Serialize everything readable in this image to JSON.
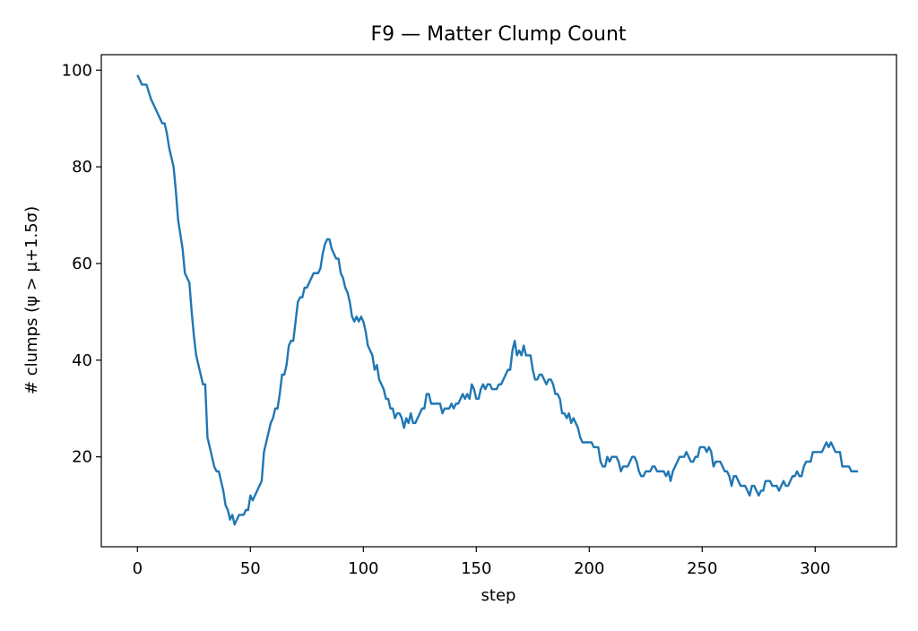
{
  "chart_data": {
    "type": "line",
    "title": "F9 — Matter Clump Count",
    "xlabel": "step",
    "ylabel": "# clumps (ψ > μ+1.5σ)",
    "xlim": [
      -16,
      336
    ],
    "ylim": [
      1.4,
      103.2
    ],
    "xticks": [
      0,
      50,
      100,
      150,
      200,
      250,
      300
    ],
    "yticks": [
      20,
      40,
      60,
      80,
      100
    ],
    "grid": false,
    "color": "#1f77b4",
    "series": [
      {
        "points": [
          [
            0,
            99
          ],
          [
            2,
            97
          ],
          [
            4,
            97
          ],
          [
            6,
            94
          ],
          [
            8,
            92
          ],
          [
            10,
            90
          ],
          [
            11,
            89
          ],
          [
            12,
            89
          ],
          [
            13,
            87
          ],
          [
            14,
            84
          ],
          [
            16,
            80
          ],
          [
            17,
            75
          ],
          [
            18,
            69
          ],
          [
            20,
            63
          ],
          [
            21,
            58
          ],
          [
            22,
            57
          ],
          [
            23,
            56
          ],
          [
            24,
            50
          ],
          [
            25,
            45
          ],
          [
            26,
            41
          ],
          [
            28,
            37
          ],
          [
            29,
            35
          ],
          [
            30,
            35
          ],
          [
            31,
            24
          ],
          [
            32,
            22
          ],
          [
            33,
            20
          ],
          [
            34,
            18
          ],
          [
            35,
            17
          ],
          [
            36,
            17
          ],
          [
            37,
            15
          ],
          [
            38,
            13
          ],
          [
            39,
            10
          ],
          [
            40,
            9
          ],
          [
            41,
            7
          ],
          [
            42,
            8
          ],
          [
            43,
            6
          ],
          [
            44,
            7
          ],
          [
            45,
            8
          ],
          [
            46,
            8
          ],
          [
            47,
            8
          ],
          [
            48,
            9
          ],
          [
            49,
            9
          ],
          [
            50,
            12
          ],
          [
            51,
            11
          ],
          [
            52,
            12
          ],
          [
            54,
            14
          ],
          [
            55,
            15
          ],
          [
            56,
            21
          ],
          [
            57,
            23
          ],
          [
            58,
            25
          ],
          [
            59,
            27
          ],
          [
            60,
            28
          ],
          [
            61,
            30
          ],
          [
            62,
            30
          ],
          [
            63,
            33
          ],
          [
            64,
            37
          ],
          [
            65,
            37
          ],
          [
            66,
            39
          ],
          [
            67,
            43
          ],
          [
            68,
            44
          ],
          [
            69,
            44
          ],
          [
            70,
            48
          ],
          [
            71,
            52
          ],
          [
            72,
            53
          ],
          [
            73,
            53
          ],
          [
            74,
            55
          ],
          [
            75,
            55
          ],
          [
            76,
            56
          ],
          [
            77,
            57
          ],
          [
            78,
            58
          ],
          [
            79,
            58
          ],
          [
            80,
            58
          ],
          [
            81,
            59
          ],
          [
            82,
            62
          ],
          [
            83,
            64
          ],
          [
            84,
            65
          ],
          [
            85,
            65
          ],
          [
            86,
            63
          ],
          [
            87,
            62
          ],
          [
            88,
            61
          ],
          [
            89,
            61
          ],
          [
            90,
            58
          ],
          [
            91,
            57
          ],
          [
            92,
            55
          ],
          [
            93,
            54
          ],
          [
            94,
            52
          ],
          [
            95,
            49
          ],
          [
            96,
            48
          ],
          [
            97,
            49
          ],
          [
            98,
            48
          ],
          [
            99,
            49
          ],
          [
            100,
            48
          ],
          [
            101,
            46
          ],
          [
            102,
            43
          ],
          [
            103,
            42
          ],
          [
            104,
            41
          ],
          [
            105,
            38
          ],
          [
            106,
            39
          ],
          [
            107,
            36
          ],
          [
            108,
            35
          ],
          [
            109,
            34
          ],
          [
            110,
            32
          ],
          [
            111,
            32
          ],
          [
            112,
            30
          ],
          [
            113,
            30
          ],
          [
            114,
            28
          ],
          [
            115,
            29
          ],
          [
            116,
            29
          ],
          [
            117,
            28
          ],
          [
            118,
            26
          ],
          [
            119,
            28
          ],
          [
            120,
            27
          ],
          [
            121,
            29
          ],
          [
            122,
            27
          ],
          [
            123,
            27
          ],
          [
            124,
            28
          ],
          [
            125,
            29
          ],
          [
            126,
            30
          ],
          [
            127,
            30
          ],
          [
            128,
            33
          ],
          [
            129,
            33
          ],
          [
            130,
            31
          ],
          [
            131,
            31
          ],
          [
            132,
            31
          ],
          [
            133,
            31
          ],
          [
            134,
            31
          ],
          [
            135,
            29
          ],
          [
            136,
            30
          ],
          [
            137,
            30
          ],
          [
            138,
            30
          ],
          [
            139,
            31
          ],
          [
            140,
            30
          ],
          [
            141,
            31
          ],
          [
            142,
            31
          ],
          [
            143,
            32
          ],
          [
            144,
            33
          ],
          [
            145,
            32
          ],
          [
            146,
            33
          ],
          [
            147,
            32
          ],
          [
            148,
            35
          ],
          [
            149,
            34
          ],
          [
            150,
            32
          ],
          [
            151,
            32
          ],
          [
            152,
            34
          ],
          [
            153,
            35
          ],
          [
            154,
            34
          ],
          [
            155,
            35
          ],
          [
            156,
            35
          ],
          [
            157,
            34
          ],
          [
            158,
            34
          ],
          [
            159,
            34
          ],
          [
            160,
            35
          ],
          [
            161,
            35
          ],
          [
            162,
            36
          ],
          [
            163,
            37
          ],
          [
            164,
            38
          ],
          [
            165,
            38
          ],
          [
            166,
            42
          ],
          [
            167,
            44
          ],
          [
            168,
            41
          ],
          [
            169,
            42
          ],
          [
            170,
            41
          ],
          [
            171,
            43
          ],
          [
            172,
            41
          ],
          [
            173,
            41
          ],
          [
            174,
            41
          ],
          [
            175,
            38
          ],
          [
            176,
            36
          ],
          [
            177,
            36
          ],
          [
            178,
            37
          ],
          [
            179,
            37
          ],
          [
            180,
            36
          ],
          [
            181,
            35
          ],
          [
            182,
            36
          ],
          [
            183,
            36
          ],
          [
            184,
            35
          ],
          [
            185,
            33
          ],
          [
            186,
            33
          ],
          [
            187,
            32
          ],
          [
            188,
            29
          ],
          [
            189,
            29
          ],
          [
            190,
            28
          ],
          [
            191,
            29
          ],
          [
            192,
            27
          ],
          [
            193,
            28
          ],
          [
            194,
            27
          ],
          [
            195,
            26
          ],
          [
            196,
            24
          ],
          [
            197,
            23
          ],
          [
            198,
            23
          ],
          [
            199,
            23
          ],
          [
            200,
            23
          ],
          [
            201,
            23
          ],
          [
            202,
            22
          ],
          [
            203,
            22
          ],
          [
            204,
            22
          ],
          [
            205,
            19
          ],
          [
            206,
            18
          ],
          [
            207,
            18
          ],
          [
            208,
            20
          ],
          [
            209,
            19
          ],
          [
            210,
            20
          ],
          [
            211,
            20
          ],
          [
            212,
            20
          ],
          [
            213,
            19
          ],
          [
            214,
            17
          ],
          [
            215,
            18
          ],
          [
            216,
            18
          ],
          [
            217,
            18
          ],
          [
            218,
            19
          ],
          [
            219,
            20
          ],
          [
            220,
            20
          ],
          [
            221,
            19
          ],
          [
            222,
            17
          ],
          [
            223,
            16
          ],
          [
            224,
            16
          ],
          [
            225,
            17
          ],
          [
            226,
            17
          ],
          [
            227,
            17
          ],
          [
            228,
            18
          ],
          [
            229,
            18
          ],
          [
            230,
            17
          ],
          [
            231,
            17
          ],
          [
            232,
            17
          ],
          [
            233,
            17
          ],
          [
            234,
            16
          ],
          [
            235,
            17
          ],
          [
            236,
            15
          ],
          [
            237,
            17
          ],
          [
            238,
            18
          ],
          [
            239,
            19
          ],
          [
            240,
            20
          ],
          [
            241,
            20
          ],
          [
            242,
            20
          ],
          [
            243,
            21
          ],
          [
            244,
            20
          ],
          [
            245,
            19
          ],
          [
            246,
            19
          ],
          [
            247,
            20
          ],
          [
            248,
            20
          ],
          [
            249,
            22
          ],
          [
            250,
            22
          ],
          [
            251,
            22
          ],
          [
            252,
            21
          ],
          [
            253,
            22
          ],
          [
            254,
            21
          ],
          [
            255,
            18
          ],
          [
            256,
            19
          ],
          [
            257,
            19
          ],
          [
            258,
            19
          ],
          [
            259,
            18
          ],
          [
            260,
            17
          ],
          [
            261,
            17
          ],
          [
            262,
            16
          ],
          [
            263,
            14
          ],
          [
            264,
            16
          ],
          [
            265,
            16
          ],
          [
            266,
            15
          ],
          [
            267,
            14
          ],
          [
            268,
            14
          ],
          [
            269,
            14
          ],
          [
            270,
            13
          ],
          [
            271,
            12
          ],
          [
            272,
            14
          ],
          [
            273,
            14
          ],
          [
            274,
            13
          ],
          [
            275,
            12
          ],
          [
            276,
            13
          ],
          [
            277,
            13
          ],
          [
            278,
            15
          ],
          [
            279,
            15
          ],
          [
            280,
            15
          ],
          [
            281,
            14
          ],
          [
            282,
            14
          ],
          [
            283,
            14
          ],
          [
            284,
            13
          ],
          [
            285,
            14
          ],
          [
            286,
            15
          ],
          [
            287,
            14
          ],
          [
            288,
            14
          ],
          [
            289,
            15
          ],
          [
            290,
            16
          ],
          [
            291,
            16
          ],
          [
            292,
            17
          ],
          [
            293,
            16
          ],
          [
            294,
            16
          ],
          [
            295,
            18
          ],
          [
            296,
            19
          ],
          [
            297,
            19
          ],
          [
            298,
            19
          ],
          [
            299,
            21
          ],
          [
            300,
            21
          ],
          [
            301,
            21
          ],
          [
            302,
            21
          ],
          [
            303,
            21
          ],
          [
            304,
            22
          ],
          [
            305,
            23
          ],
          [
            306,
            22
          ],
          [
            307,
            23
          ],
          [
            308,
            22
          ],
          [
            309,
            21
          ],
          [
            310,
            21
          ],
          [
            311,
            21
          ],
          [
            312,
            18
          ],
          [
            313,
            18
          ],
          [
            314,
            18
          ],
          [
            315,
            18
          ],
          [
            316,
            17
          ],
          [
            317,
            17
          ],
          [
            318,
            17
          ],
          [
            319,
            17
          ]
        ]
      }
    ]
  }
}
